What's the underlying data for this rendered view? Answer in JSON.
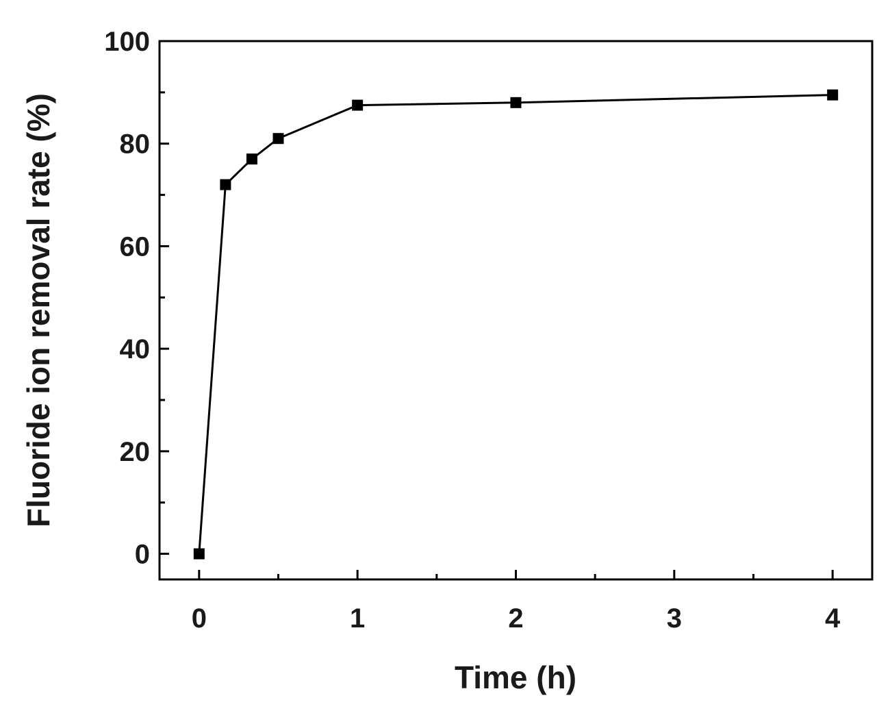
{
  "chart_data": {
    "type": "line",
    "title": "",
    "xlabel": "Time (h)",
    "ylabel": "Fluoride ion removal rate (%)",
    "xlim": [
      -0.25,
      4.25
    ],
    "ylim": [
      -5,
      100
    ],
    "x_ticks": [
      0,
      1,
      2,
      3,
      4
    ],
    "x_minor_ticks": [
      0.5,
      1.5,
      2.5,
      3.5
    ],
    "y_ticks": [
      0,
      20,
      40,
      60,
      80,
      100
    ],
    "y_minor_ticks": [
      10,
      30,
      50,
      70,
      90
    ],
    "grid": false,
    "legend": "none",
    "line_color": "#000000",
    "marker": "square",
    "series": [
      {
        "x": [
          0,
          0.1667,
          0.3333,
          0.5,
          1,
          2,
          4
        ],
        "y": [
          0,
          72,
          77,
          81,
          87.5,
          88,
          89.5
        ]
      }
    ]
  }
}
